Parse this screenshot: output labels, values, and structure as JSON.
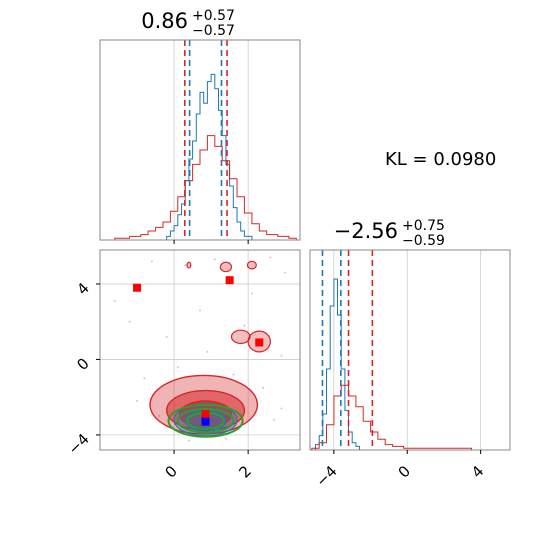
{
  "chart_data": [
    {
      "type": "histogram",
      "panel": "param1-marginal",
      "title": {
        "median": "0.86",
        "upper": "+0.57",
        "lower": "−0.57"
      },
      "xlim": [
        -2.0,
        3.4
      ],
      "blue_quantiles": [
        0.42,
        1.28
      ],
      "red_quantiles": [
        0.29,
        1.43
      ],
      "series": [
        {
          "color": "#1f77b4",
          "bins": [
            [
              -0.2,
              0.02
            ],
            [
              -0.1,
              0.05
            ],
            [
              0.0,
              0.08
            ],
            [
              0.1,
              0.14
            ],
            [
              0.2,
              0.2
            ],
            [
              0.3,
              0.33
            ],
            [
              0.4,
              0.45
            ],
            [
              0.5,
              0.55
            ],
            [
              0.6,
              0.7
            ],
            [
              0.7,
              0.82
            ],
            [
              0.8,
              0.76
            ],
            [
              0.9,
              0.88
            ],
            [
              1.0,
              0.92
            ],
            [
              1.1,
              0.84
            ],
            [
              1.2,
              0.72
            ],
            [
              1.3,
              0.58
            ],
            [
              1.4,
              0.42
            ],
            [
              1.5,
              0.3
            ],
            [
              1.6,
              0.18
            ],
            [
              1.7,
              0.1
            ],
            [
              1.8,
              0.05
            ],
            [
              1.9,
              0.02
            ]
          ]
        },
        {
          "color": "#d62728",
          "bins": [
            [
              -2.0,
              0.0
            ],
            [
              -1.6,
              0.01
            ],
            [
              -1.2,
              0.02
            ],
            [
              -0.9,
              0.03
            ],
            [
              -0.7,
              0.05
            ],
            [
              -0.5,
              0.07
            ],
            [
              -0.3,
              0.1
            ],
            [
              -0.1,
              0.16
            ],
            [
              0.1,
              0.24
            ],
            [
              0.3,
              0.33
            ],
            [
              0.5,
              0.42
            ],
            [
              0.7,
              0.5
            ],
            [
              0.9,
              0.58
            ],
            [
              1.1,
              0.52
            ],
            [
              1.3,
              0.44
            ],
            [
              1.5,
              0.34
            ],
            [
              1.7,
              0.24
            ],
            [
              1.9,
              0.15
            ],
            [
              2.1,
              0.09
            ],
            [
              2.3,
              0.05
            ],
            [
              2.5,
              0.03
            ],
            [
              2.8,
              0.02
            ],
            [
              3.1,
              0.01
            ]
          ]
        }
      ]
    },
    {
      "type": "histogram",
      "panel": "param2-marginal",
      "title": {
        "median": "−2.56",
        "upper": "+0.75",
        "lower": "−0.59"
      },
      "xlim": [
        -5.3,
        5.6
      ],
      "blue_quantiles": [
        -4.62,
        -3.62
      ],
      "red_quantiles": [
        -3.2,
        -1.9
      ],
      "series": [
        {
          "color": "#1f77b4",
          "bins": [
            [
              -5.0,
              0.03
            ],
            [
              -4.8,
              0.08
            ],
            [
              -4.6,
              0.2
            ],
            [
              -4.4,
              0.45
            ],
            [
              -4.2,
              0.8
            ],
            [
              -4.0,
              0.95
            ],
            [
              -3.8,
              0.75
            ],
            [
              -3.6,
              0.45
            ],
            [
              -3.4,
              0.22
            ],
            [
              -3.2,
              0.1
            ],
            [
              -3.0,
              0.04
            ],
            [
              -2.8,
              0.02
            ]
          ]
        },
        {
          "color": "#d62728",
          "bins": [
            [
              -5.2,
              0.01
            ],
            [
              -4.8,
              0.04
            ],
            [
              -4.4,
              0.14
            ],
            [
              -4.0,
              0.3
            ],
            [
              -3.6,
              0.36
            ],
            [
              -3.2,
              0.3
            ],
            [
              -2.8,
              0.24
            ],
            [
              -2.4,
              0.16
            ],
            [
              -2.0,
              0.1
            ],
            [
              -1.6,
              0.06
            ],
            [
              -1.2,
              0.03
            ],
            [
              -0.8,
              0.02
            ],
            [
              -0.2,
              0.01
            ],
            [
              0.5,
              0.01
            ],
            [
              2.0,
              0.01
            ],
            [
              3.5,
              0.0
            ]
          ]
        }
      ]
    },
    {
      "type": "contour",
      "panel": "joint",
      "xlim": [
        -2.0,
        3.4
      ],
      "ylim": [
        -4.8,
        5.8
      ],
      "xticks": [
        0,
        2
      ],
      "yticks": [
        -4,
        0,
        4
      ],
      "xtick_labels": [
        "0",
        "2"
      ],
      "ytick_labels": [
        "−4",
        "0",
        "4"
      ],
      "red_markers": [
        [
          -1.0,
          3.8
        ],
        [
          1.5,
          4.2
        ],
        [
          2.3,
          0.9
        ],
        [
          0.85,
          -2.9
        ]
      ],
      "blue_markers": [
        [
          0.85,
          -3.3
        ]
      ],
      "colors": {
        "red": "#d62728",
        "blue": "#1f77b4",
        "green": "#2ca02c"
      }
    }
  ],
  "shared_ticks": {
    "p2_xticks": [
      -4,
      0,
      4
    ],
    "p2_xtick_labels": [
      "−4",
      "0",
      "4"
    ]
  },
  "kl_label": "KL = 0.0980"
}
